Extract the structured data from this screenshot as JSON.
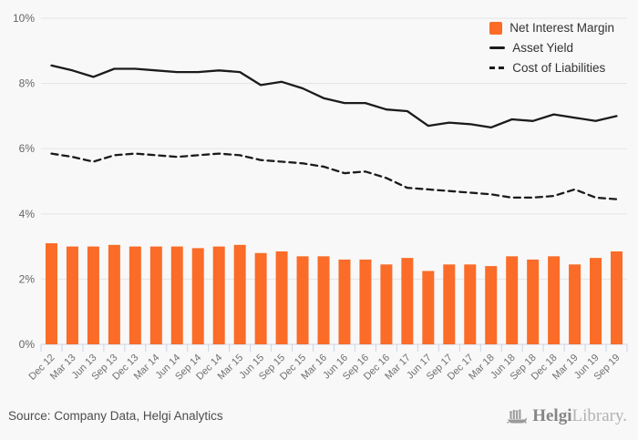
{
  "footer": {
    "source": "Source: Company Data, Helgi Analytics"
  },
  "logo": {
    "brand_bold": "Helgi",
    "brand_light": "Library."
  },
  "chart_data": {
    "type": "bar",
    "subtype": "combo-bar-line",
    "categories": [
      "Dec 12",
      "Mar 13",
      "Jun 13",
      "Sep 13",
      "Dec 13",
      "Mar 14",
      "Jun 14",
      "Sep 14",
      "Dec 14",
      "Mar 15",
      "Jun 15",
      "Sep 15",
      "Dec 15",
      "Mar 16",
      "Jun 16",
      "Sep 16",
      "Dec 16",
      "Mar 17",
      "Jun 17",
      "Sep 17",
      "Dec 17",
      "Mar 18",
      "Jun 18",
      "Sep 18",
      "Dec 18",
      "Mar 19",
      "Jun 19",
      "Sep 19"
    ],
    "series": [
      {
        "name": "Net Interest Margin",
        "kind": "bar",
        "color": "#fa6c28",
        "values": [
          3.1,
          3.0,
          3.0,
          3.05,
          3.0,
          3.0,
          3.0,
          2.95,
          3.0,
          3.05,
          2.8,
          2.85,
          2.7,
          2.7,
          2.6,
          2.6,
          2.45,
          2.65,
          2.25,
          2.45,
          2.45,
          2.4,
          2.7,
          2.6,
          2.7,
          2.45,
          2.65,
          2.85
        ]
      },
      {
        "name": "Asset Yield",
        "kind": "line",
        "dash": "solid",
        "color": "#1b1b1b",
        "values": [
          8.55,
          8.4,
          8.2,
          8.45,
          8.45,
          8.4,
          8.35,
          8.35,
          8.4,
          8.35,
          7.95,
          8.05,
          7.85,
          7.55,
          7.4,
          7.4,
          7.2,
          7.15,
          6.7,
          6.8,
          6.75,
          6.65,
          6.9,
          6.85,
          7.05,
          6.95,
          6.85,
          7.0
        ]
      },
      {
        "name": "Cost of Liabilities",
        "kind": "line",
        "dash": "dashed",
        "color": "#1b1b1b",
        "values": [
          5.85,
          5.75,
          5.6,
          5.8,
          5.85,
          5.8,
          5.75,
          5.8,
          5.85,
          5.8,
          5.65,
          5.6,
          5.55,
          5.45,
          5.25,
          5.3,
          5.1,
          4.8,
          4.75,
          4.7,
          4.65,
          4.6,
          4.5,
          4.5,
          4.55,
          4.75,
          4.5,
          4.45
        ]
      }
    ],
    "ylim": [
      0,
      10
    ],
    "yticks": [
      "0%",
      "2%",
      "4%",
      "6%",
      "8%",
      "10%"
    ],
    "ytick_values": [
      0,
      2,
      4,
      6,
      8,
      10
    ],
    "xlabel": "",
    "ylabel": "",
    "title": "",
    "grid": true,
    "legend_position": "top-right",
    "style": {
      "grid_color": "#e4e4e4",
      "axis_color": "#ccd4e6",
      "ytick_color": "#666666",
      "xtick_color": "#707070",
      "background": "#f8f8f8"
    }
  }
}
